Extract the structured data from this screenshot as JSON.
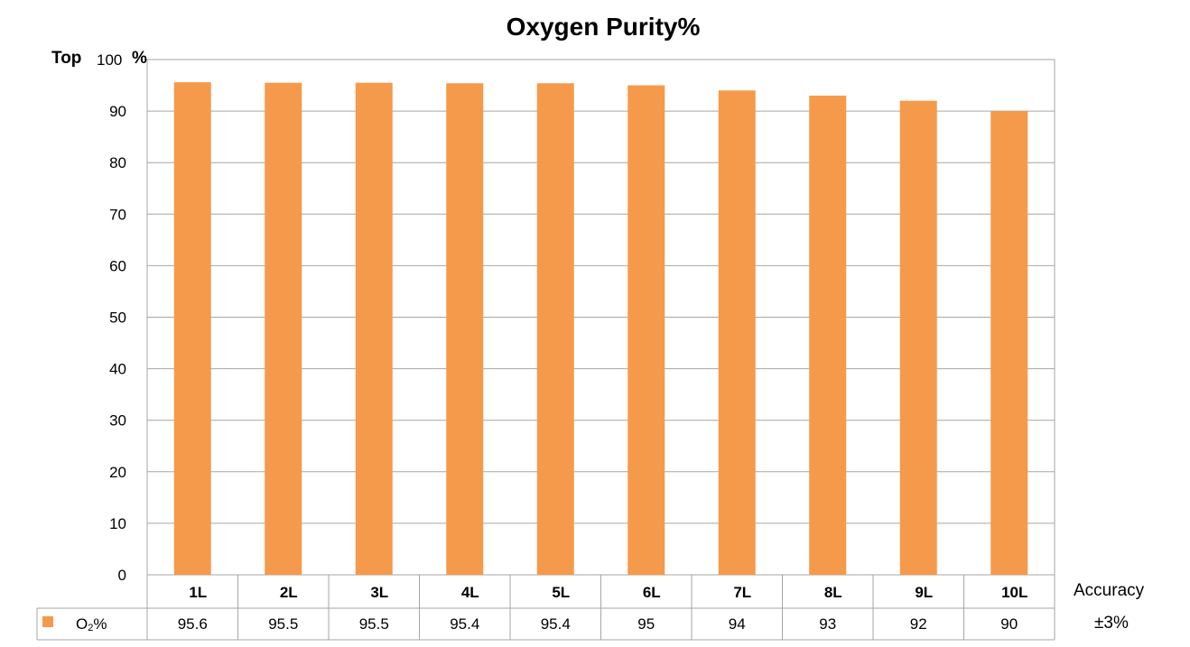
{
  "chart_data": {
    "type": "bar",
    "title": "Oxygen Purity%",
    "ylabel_top": "Top",
    "ylabel_unit": "%",
    "ylim": [
      0,
      100
    ],
    "yticks": [
      0,
      10,
      20,
      30,
      40,
      50,
      60,
      70,
      80,
      90,
      100
    ],
    "grid": true,
    "categories": [
      {
        "num": "1",
        "unit": "L"
      },
      {
        "num": "2",
        "unit": "L"
      },
      {
        "num": "3",
        "unit": "L"
      },
      {
        "num": "4",
        "unit": "L"
      },
      {
        "num": "5",
        "unit": "L"
      },
      {
        "num": "6",
        "unit": "L"
      },
      {
        "num": "7",
        "unit": "L"
      },
      {
        "num": "8",
        "unit": "L"
      },
      {
        "num": "9",
        "unit": "L"
      },
      {
        "num": "10",
        "unit": "L"
      }
    ],
    "series": [
      {
        "name_main": "O",
        "name_sub": "2",
        "name_suffix": "%",
        "color": "#F59A4A",
        "values": [
          95.6,
          95.5,
          95.5,
          95.4,
          95.4,
          95,
          94,
          93,
          92,
          90
        ]
      }
    ],
    "value_labels": [
      "95.6",
      "95.5",
      "95.5",
      "95.4",
      "95.4",
      "95",
      "94",
      "93",
      "92",
      "90"
    ],
    "legend_position": "bottom-left (data table)",
    "accuracy": {
      "label": "Accuracy",
      "value": "±3%"
    }
  }
}
